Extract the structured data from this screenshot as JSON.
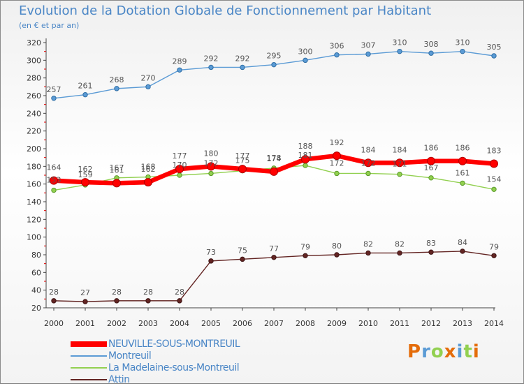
{
  "chart_data": {
    "type": "line",
    "title": "Evolution de la Dotation Globale de Fonctionnement par Habitant",
    "subtitle": "(en € et par an)",
    "x": [
      "2000",
      "2001",
      "2002",
      "2003",
      "2004",
      "2005",
      "2006",
      "2007",
      "2008",
      "2009",
      "2010",
      "2011",
      "2012",
      "2013",
      "2014"
    ],
    "ylim": [
      20,
      320
    ],
    "yticks": [
      20,
      40,
      60,
      80,
      100,
      120,
      140,
      160,
      180,
      200,
      220,
      240,
      260,
      280,
      300,
      320
    ],
    "grid": false,
    "legend_position": "bottom-left",
    "series": [
      {
        "name": "NEUVILLE-SOUS-MONTREUIL",
        "color": "#ff0000",
        "values": [
          164,
          162,
          161,
          162,
          177,
          180,
          177,
          174,
          188,
          192,
          184,
          184,
          186,
          186,
          183
        ]
      },
      {
        "name": "Montreuil",
        "color": "#5b9bd5",
        "values": [
          257,
          261,
          268,
          270,
          289,
          292,
          292,
          295,
          300,
          306,
          307,
          310,
          308,
          310,
          305
        ]
      },
      {
        "name": "La Madelaine-sous-Montreuil",
        "color": "#92d050",
        "values": [
          153,
          159,
          167,
          168,
          170,
          172,
          175,
          178,
          181,
          172,
          172,
          171,
          167,
          161,
          154
        ]
      },
      {
        "name": "Attin",
        "color": "#632523",
        "values": [
          28,
          27,
          28,
          28,
          28,
          73,
          75,
          77,
          79,
          80,
          82,
          82,
          83,
          84,
          79
        ]
      }
    ]
  },
  "brand": {
    "logo_text": "Proxiti"
  }
}
